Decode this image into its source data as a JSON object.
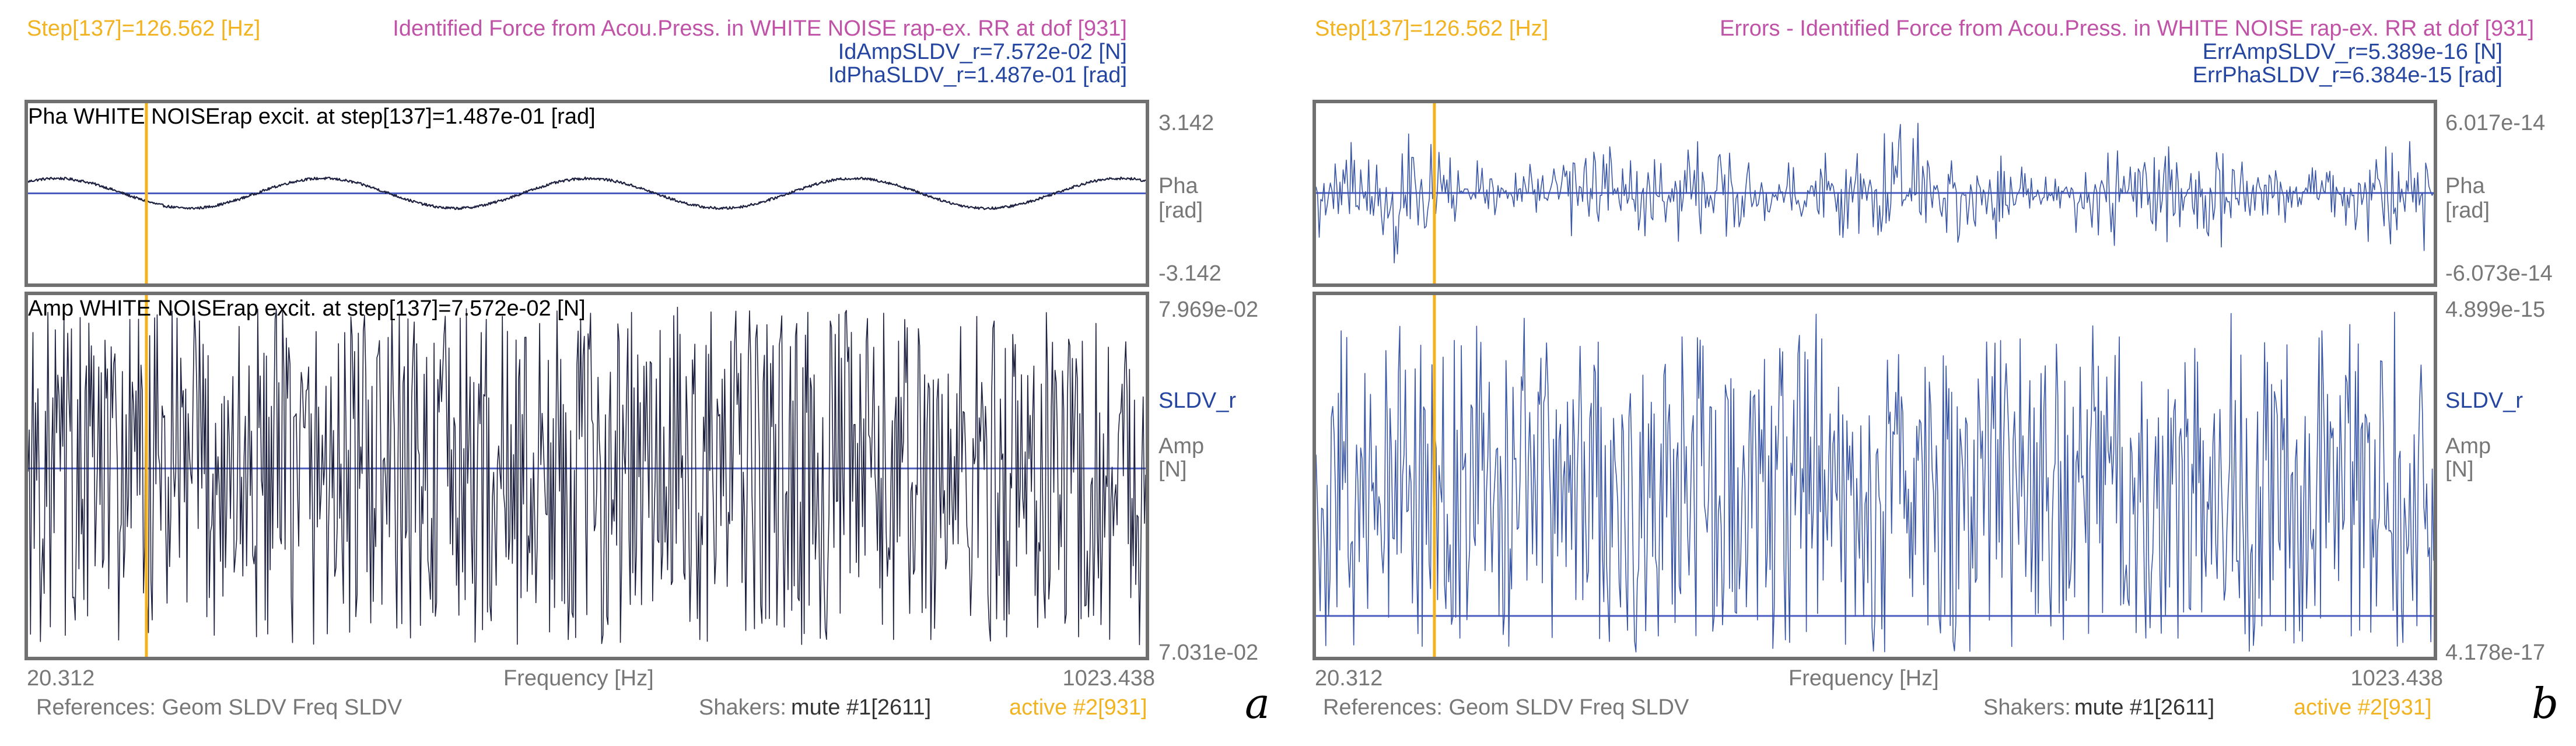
{
  "chart_data": [
    {
      "id": "a",
      "type": "line",
      "step_label": "Step[137]=126.562 [Hz]",
      "title": "Identified Force from Acou.Press. in WHITE NOISE rap-ex. RR at dof [931]",
      "info_lines": [
        "IdAmpSLDV_r=7.572e-02 [N]",
        "IdPhaSLDV_r=1.487e-01 [rad]"
      ],
      "series_color": "#1e2140",
      "xlabel": "Frequency [Hz]",
      "xlim": [
        20.312,
        1023.438
      ],
      "x_ticks": [
        "20.312",
        "1023.438"
      ],
      "cursor_x": 126.562,
      "phase_plot": {
        "label": "Pha WHITE NOISErap excit. at step[137]=1.487e-01 [rad]",
        "ylim": [
          -3.142,
          3.142
        ],
        "ymax_label": "3.142",
        "ymin_label": "-3.142",
        "ylabel": "Pha",
        "yunit": "[rad]",
        "ref_level": 0.0,
        "kind": "sine",
        "cycles": 4.2,
        "amplitude": 0.5,
        "noise": 0.03
      },
      "amplitude_plot": {
        "label": "Amp WHITE NOISErap excit. at step[137]=7.572e-02 [N]",
        "ylim": [
          0.07031,
          0.07969
        ],
        "ymax_label": "7.969e-02",
        "ymin_label": "7.031e-02",
        "series_name": "SLDV_r",
        "ylabel": "Amp",
        "yunit": "[N]",
        "ref_level": 0.0752,
        "kind": "noise",
        "points": 900
      },
      "references": "References: Geom SLDV Freq SLDV",
      "shakers_label": "Shakers:",
      "shaker_mute": "mute #1[2611]",
      "shaker_active": "active #2[931]",
      "panel_letter": "a"
    },
    {
      "id": "b",
      "type": "line",
      "step_label": "Step[137]=126.562 [Hz]",
      "title": "Errors - Identified Force from Acou.Press. in WHITE NOISE rap-ex. RR at dof [931]",
      "info_lines": [
        "ErrAmpSLDV_r=5.389e-16 [N]",
        "ErrPhaSLDV_r=6.384e-15 [rad]"
      ],
      "series_color": "#3a56a6",
      "xlabel": "Frequency [Hz]",
      "xlim": [
        20.312,
        1023.438
      ],
      "x_ticks": [
        "20.312",
        "1023.438"
      ],
      "cursor_x": 126.562,
      "phase_plot": {
        "label": "",
        "ylim": [
          -6.073e-14,
          6.017e-14
        ],
        "ymax_label": "6.017e-14",
        "ymin_label": "-6.073e-14",
        "ylabel": "Pha",
        "yunit": "[rad]",
        "ref_level": 0.0,
        "kind": "noise",
        "points": 700
      },
      "amplitude_plot": {
        "label": "",
        "ylim": [
          4.178e-17,
          4.899e-15
        ],
        "ymax_label": "4.899e-15",
        "ymin_label": "4.178e-17",
        "series_name": "SLDV_r",
        "ylabel": "Amp",
        "yunit": "[N]",
        "ref_level": 5.4e-16,
        "kind": "noise",
        "points": 800
      },
      "references": "References: Geom SLDV Freq SLDV",
      "shakers_label": "Shakers:",
      "shaker_mute": "mute #1[2611]",
      "shaker_active": "active #2[931]",
      "panel_letter": "b"
    }
  ],
  "colors": {
    "cursor": "#f5b21f",
    "reference_line": "#4a5cc0",
    "frame": "#707070"
  }
}
